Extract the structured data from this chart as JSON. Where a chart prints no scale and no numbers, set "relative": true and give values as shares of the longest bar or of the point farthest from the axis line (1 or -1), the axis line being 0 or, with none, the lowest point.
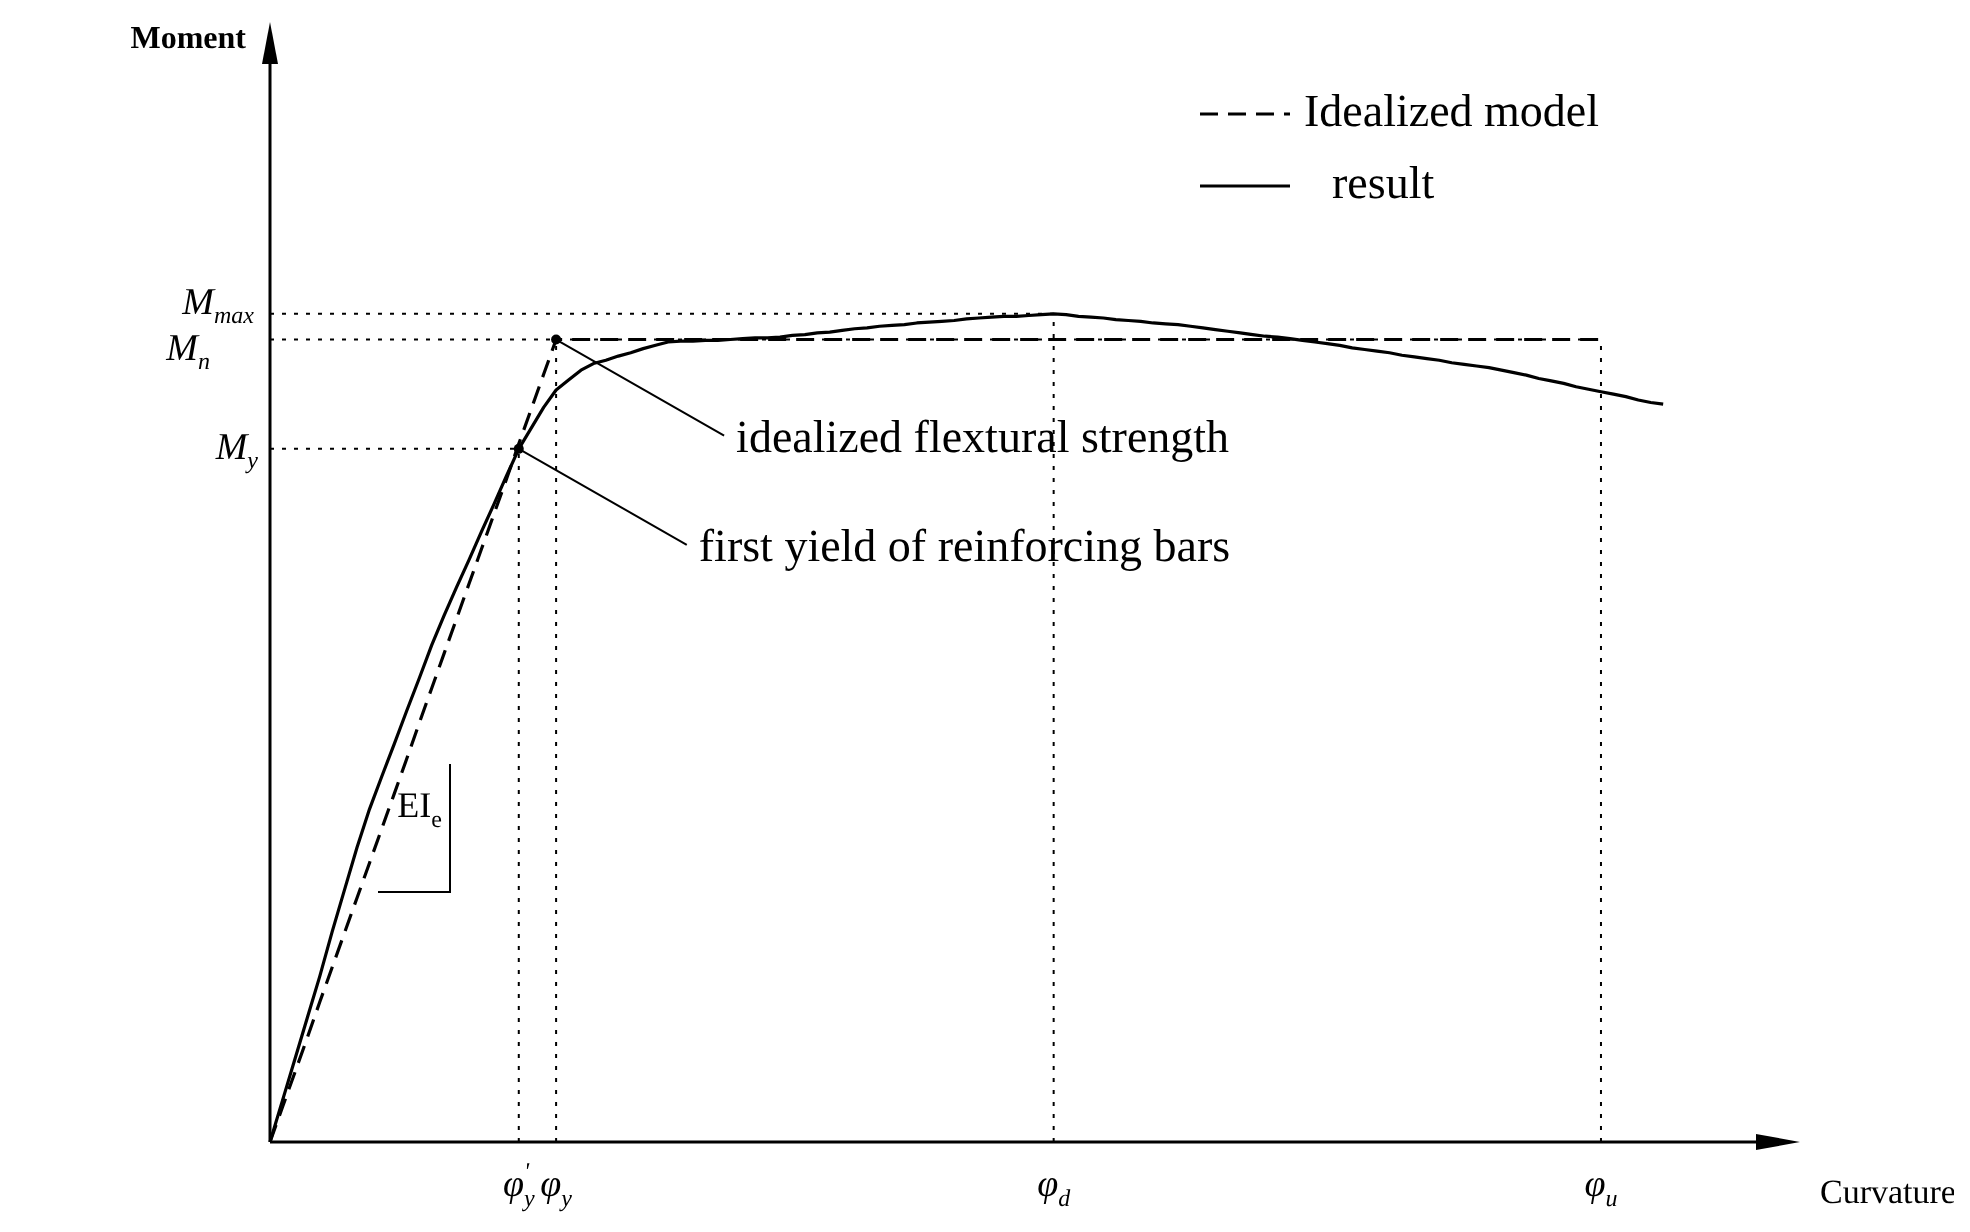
{
  "chart_data": {
    "type": "line",
    "relative": true,
    "xlabel": "Curvature",
    "legend": "top right",
    "grid": "x",
    "categories": [
      null,
      null,
      null,
      null,
      null,
      null,
      null,
      null,
      null,
      null,
      null,
      null,
      null,
      null,
      null,
      null,
      null,
      null,
      null,
      null,
      "φ$^{'}$$_{y}$",
      null,
      null,
      "φ$_{y}$",
      null,
      null,
      null,
      null,
      null,
      null,
      null,
      null,
      null,
      null,
      null,
      null,
      null,
      null,
      null,
      null,
      null,
      null,
      null,
      null,
      null,
      null,
      null,
      null,
      null,
      null,
      null,
      null,
      null,
      null,
      null,
      null,
      null,
      null,
      null,
      null,
      null,
      null,
      null,
      "φ$_{d}$",
      null,
      null,
      null,
      null,
      null,
      null,
      null,
      null,
      null,
      null,
      null,
      null,
      null,
      null,
      null,
      null,
      null,
      null,
      null,
      null,
      null,
      null,
      null,
      null,
      null,
      null,
      null,
      null,
      null,
      null,
      null,
      null,
      null,
      null,
      null,
      null,
      null,
      null,
      null,
      null,
      null,
      null,
      null,
      "φ$_{u}$",
      null,
      null,
      null,
      null,
      null,
      null,
      null,
      null,
      null,
      null,
      null,
      null,
      null,
      null,
      null,
      null
    ],
    "series": [
      {
        "name": "Idealized model",
        "color": "#000000",
        "line_style": "dashed",
        "values": [
          0,
          0.042,
          0.084,
          0.126,
          0.169,
          0.211,
          0.253,
          0.295,
          0.337,
          0.379,
          0.421,
          0.463,
          0.506,
          0.548,
          0.59,
          0.632,
          0.674,
          0.716,
          0.758,
          0.8,
          0.843,
          0.885,
          0.927,
          0.969,
          0.969,
          0.969,
          0.969,
          0.969,
          0.969,
          0.969,
          0.969,
          0.969,
          0.969,
          0.969,
          0.969,
          0.969,
          0.969,
          0.969,
          0.969,
          0.969,
          0.969,
          0.969,
          0.969,
          0.969,
          0.969,
          0.969,
          0.969,
          0.969,
          0.969,
          0.969,
          0.969,
          0.969,
          0.969,
          0.969,
          0.969,
          0.969,
          0.969,
          0.969,
          0.969,
          0.969,
          0.969,
          0.969,
          0.969,
          0.969,
          0.969,
          0.969,
          0.969,
          0.969,
          0.969,
          0.969,
          0.969,
          0.969,
          0.969,
          0.969,
          0.969,
          0.969,
          0.969,
          0.969,
          0.969,
          0.969,
          0.969,
          0.969,
          0.969,
          0.969,
          0.969,
          0.969,
          0.969,
          0.969,
          0.969,
          0.969,
          0.969,
          0.969,
          0.969,
          0.969,
          0.969,
          0.969,
          0.969,
          0.969,
          0.969,
          0.969,
          0.969,
          0.969,
          0.969,
          0.969,
          0.969,
          0.969,
          0.969,
          0.969,
          null,
          null,
          null,
          null,
          null,
          null,
          null,
          null,
          null,
          null,
          null,
          null,
          null,
          null,
          null,
          null
        ]
      },
      {
        "name": "result",
        "color": "#000000",
        "line_style": "solid",
        "values": [
          0,
          0.05,
          0.1,
          0.15,
          0.2,
          0.254,
          0.305,
          0.356,
          0.402,
          0.442,
          0.481,
          0.521,
          0.56,
          0.6,
          0.636,
          0.67,
          0.703,
          0.737,
          0.77,
          0.804,
          0.837,
          0.862,
          0.887,
          0.908,
          0.92,
          0.932,
          0.94,
          0.944,
          0.949,
          0.953,
          0.958,
          0.962,
          0.966,
          0.967,
          0.967,
          0.968,
          0.968,
          0.969,
          0.97,
          0.971,
          0.971,
          0.972,
          0.974,
          0.975,
          0.977,
          0.978,
          0.98,
          0.982,
          0.983,
          0.985,
          0.986,
          0.987,
          0.989,
          0.99,
          0.991,
          0.992,
          0.994,
          0.995,
          0.996,
          0.997,
          0.997,
          0.998,
          0.999,
          1,
          0.999,
          0.997,
          0.996,
          0.995,
          0.993,
          0.992,
          0.991,
          0.989,
          0.988,
          0.987,
          0.985,
          0.983,
          0.981,
          0.979,
          0.977,
          0.975,
          0.973,
          0.972,
          0.97,
          0.968,
          0.966,
          0.964,
          0.962,
          0.959,
          0.957,
          0.955,
          0.953,
          0.95,
          0.948,
          0.946,
          0.944,
          0.941,
          0.939,
          0.937,
          0.935,
          0.932,
          0.929,
          0.926,
          0.922,
          0.919,
          0.916,
          0.912,
          0.909,
          0.906,
          0.903,
          0.9,
          0.896,
          0.893,
          0.891,
          null,
          null,
          null,
          null,
          null,
          null,
          null,
          null,
          null,
          null,
          null
        ]
      }
    ],
    "ref_lines": [
      {
        "axis": "y",
        "value": 1,
        "label": "M$_{max}$",
        "line_style": "dotted"
      },
      {
        "axis": "y",
        "value": 0.969,
        "label": "M$_{n}$",
        "line_style": "dotted"
      },
      {
        "axis": "y",
        "value": 0.837,
        "label": "M$_{y}$",
        "line_style": "dotted"
      }
    ],
    "annotations": [
      {
        "text": "idealized flextural strength",
        "x": "φ$_{y}$",
        "y": 0.969
      },
      {
        "text": "first yield of reinforcing bars",
        "x": "φ$^{'}$$_{y}$",
        "y": 0.837
      },
      "EI$_{e}$",
      {
        "text": "Moment"
      }
    ]
  }
}
